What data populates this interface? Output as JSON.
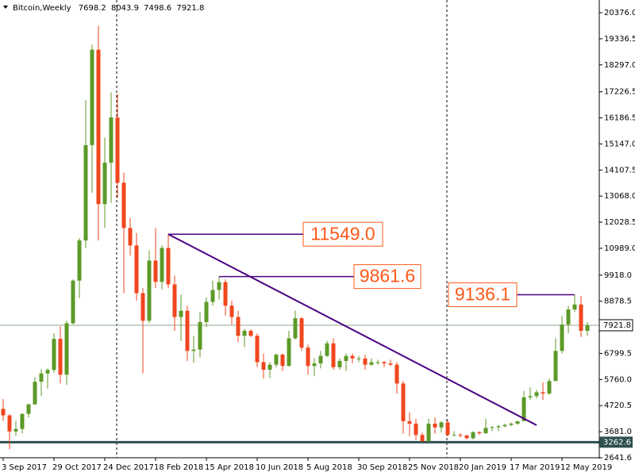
{
  "chart_data": {
    "type": "candlestick",
    "title": "Bitcoin,Weekly",
    "categories": [
      "3 Sep 2017",
      null,
      null,
      null,
      null,
      null,
      null,
      null,
      "29 Oct 2017",
      null,
      null,
      null,
      null,
      null,
      null,
      null,
      "24 Dec 2017",
      null,
      null,
      null,
      null,
      null,
      null,
      null,
      "18 Feb 2018",
      null,
      null,
      null,
      null,
      null,
      null,
      null,
      "15 Apr 2018",
      null,
      null,
      null,
      null,
      null,
      null,
      null,
      "10 Jun 2018",
      null,
      null,
      null,
      null,
      null,
      null,
      null,
      "5 Aug 2018",
      null,
      null,
      null,
      null,
      null,
      null,
      null,
      "30 Sep 2018",
      null,
      null,
      null,
      null,
      null,
      null,
      null,
      "25 Nov 2018",
      null,
      null,
      null,
      null,
      null,
      null,
      null,
      "20 Jan 2019",
      null,
      null,
      null,
      null,
      null,
      null,
      null,
      "17 Mar 2019",
      null,
      null,
      null,
      null,
      null,
      null,
      null,
      "12 May 2019",
      null,
      null,
      null,
      null
    ],
    "open": [
      4590,
      4330,
      3690,
      3790,
      4390,
      4770,
      5670,
      6000,
      6140,
      7380,
      5950,
      8000,
      9700,
      11300,
      15100,
      18900,
      12750,
      14400,
      16200,
      13600,
      11800,
      11100,
      9200,
      8100,
      10500,
      9650,
      11000,
      9550,
      8250,
      8500,
      6900,
      6950,
      8050,
      8850,
      9330,
      9640,
      8700,
      8250,
      7500,
      7700,
      7500,
      6450,
      6150,
      6350,
      6750,
      6300,
      7400,
      8200,
      7030,
      6300,
      6400,
      6700,
      7200,
      6250,
      6500,
      6700,
      6600,
      6600,
      6350,
      6450,
      6450,
      6400,
      6350,
      5600,
      4100,
      4000,
      3550,
      3300,
      4000,
      3850,
      4050,
      3550,
      3550,
      3530,
      3420,
      3660,
      3620,
      3830,
      3860,
      3900,
      3950,
      4000,
      4100,
      5050,
      5100,
      5250,
      5200,
      5700,
      6900,
      7950,
      8550,
      8750,
      7698.2
    ],
    "high": [
      4980,
      4380,
      4110,
      4400,
      4800,
      5860,
      6180,
      6200,
      7600,
      7880,
      8100,
      9750,
      11400,
      16900,
      19100,
      19850,
      15400,
      17200,
      17150,
      14000,
      12200,
      11600,
      9400,
      10900,
      11800,
      11100,
      11549,
      9900,
      9150,
      8700,
      7500,
      8450,
      9030,
      9700,
      9861.6,
      9750,
      8900,
      8500,
      7770,
      7760,
      7600,
      6800,
      6450,
      6800,
      6800,
      7700,
      8500,
      8250,
      7150,
      6600,
      6900,
      7300,
      7400,
      6600,
      6800,
      6800,
      6700,
      6750,
      6600,
      6550,
      6500,
      6550,
      6450,
      5700,
      4450,
      4200,
      3650,
      4200,
      4250,
      4100,
      4150,
      3700,
      3630,
      3560,
      3700,
      3700,
      4200,
      3900,
      3950,
      4000,
      4050,
      4100,
      5300,
      5450,
      5350,
      5650,
      5800,
      7400,
      8300,
      8700,
      9136.1,
      9090,
      8043.9
    ],
    "low": [
      4110,
      2980,
      3510,
      3620,
      4250,
      4750,
      5100,
      5400,
      6030,
      5600,
      5550,
      7950,
      9000,
      11000,
      13200,
      11300,
      11800,
      12800,
      13000,
      9200,
      10700,
      8900,
      6000,
      8000,
      9400,
      9350,
      9400,
      7700,
      7300,
      6500,
      6430,
      6650,
      7850,
      8700,
      8950,
      8300,
      7950,
      7250,
      7050,
      7450,
      6250,
      5800,
      5820,
      6250,
      6100,
      6280,
      7350,
      6900,
      5950,
      5900,
      6200,
      6650,
      6150,
      6150,
      6100,
      6400,
      6450,
      6150,
      6300,
      6350,
      6250,
      6300,
      5200,
      3600,
      3500,
      3350,
      3270,
      3250,
      3600,
      3650,
      3500,
      3500,
      3450,
      3380,
      3370,
      3550,
      3600,
      3700,
      3700,
      3850,
      3900,
      3950,
      4100,
      4950,
      5000,
      4950,
      5150,
      5700,
      6800,
      7600,
      8450,
      7450,
      7498.6
    ],
    "close": [
      4330,
      3690,
      3790,
      4390,
      4770,
      5670,
      6000,
      6140,
      7380,
      5950,
      8000,
      9700,
      11300,
      15100,
      18900,
      12750,
      14400,
      16200,
      13600,
      11800,
      11100,
      9200,
      8100,
      10500,
      9650,
      11000,
      9550,
      8250,
      8500,
      6900,
      6950,
      8050,
      8850,
      9330,
      9640,
      8700,
      8250,
      7500,
      7700,
      7500,
      6450,
      6150,
      6350,
      6750,
      6300,
      7400,
      8200,
      7030,
      6300,
      6400,
      6700,
      7200,
      6250,
      6500,
      6700,
      6600,
      6600,
      6350,
      6450,
      6450,
      6400,
      6350,
      5600,
      4100,
      4000,
      3550,
      3300,
      4000,
      3850,
      4050,
      3550,
      3550,
      3530,
      3420,
      3660,
      3620,
      3830,
      3860,
      3900,
      3950,
      4000,
      4100,
      5050,
      5100,
      5250,
      5200,
      5700,
      6900,
      7950,
      8550,
      8750,
      7698.2,
      7921.8
    ],
    "up_color": "#5c9a27",
    "down_color": "#f0461e",
    "ylim": [
      2641.6,
      20376
    ],
    "yticks": [
      {
        "value": 20376,
        "label": "20376.0"
      },
      19336.5,
      {
        "value": 18297,
        "label": "18297.0"
      },
      17226.5,
      16186.5,
      {
        "value": 15147,
        "label": "15147.0"
      },
      14107.5,
      {
        "value": 13068,
        "label": "13068.0"
      },
      12028.5,
      {
        "value": 10989,
        "label": "10989.0"
      },
      {
        "value": 9918,
        "label": "9918.0"
      },
      8878.5,
      6799.5,
      {
        "value": 5760,
        "label": "5760.0"
      },
      4720.5,
      {
        "value": 3681,
        "label": "3681.0"
      },
      2641.6
    ],
    "grid": false,
    "price_line_color": "#8fa88f",
    "hline": {
      "value": 3262.6,
      "color": "#2f4f4f"
    },
    "trendline": {
      "x": [
        26,
        84
      ],
      "y": [
        11549,
        3940
      ],
      "color": "#4b0082"
    },
    "annotation_color": "#ff5a1a",
    "annotations": [
      {
        "value": 11549,
        "label": "11549.0"
      },
      {
        "value": 9861.6,
        "label": "9861.6"
      },
      {
        "value": 9136.1,
        "label": "9136.1"
      }
    ]
  }
}
